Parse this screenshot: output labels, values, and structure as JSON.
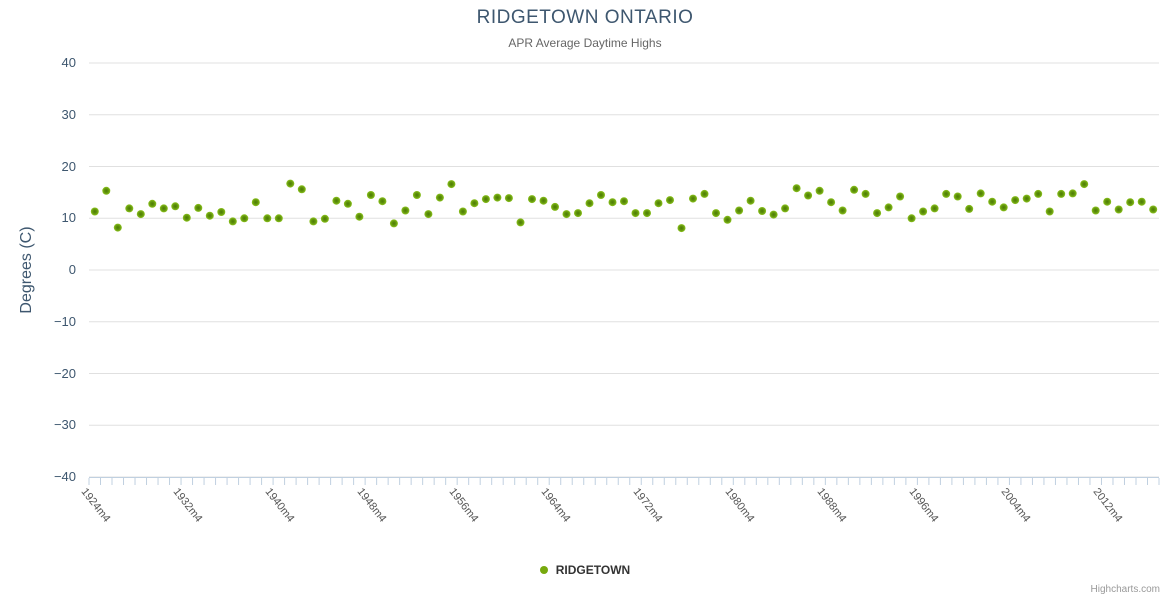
{
  "chart": {
    "title": "RIDGETOWN ONTARIO",
    "subtitle": "APR Average Daytime Highs",
    "y_axis_title": "Degrees (C)",
    "legend_label": "RIDGETOWN",
    "credits": "Highcharts.com"
  },
  "colors": {
    "point_edge": "#8dc41f",
    "point_center": "#4c7a04",
    "legend_dot": "#77a90e",
    "grid_line": "#e0e0e0",
    "axis_line": "#c0d0e0",
    "title_text": "#3E576F",
    "subtitle_text": "#666666",
    "y_label_text": "#3E576F",
    "x_label_text": "#555555",
    "credits_text": "#999999"
  },
  "chart_data": {
    "type": "scatter",
    "title": "RIDGETOWN ONTARIO",
    "subtitle": "APR Average Daytime Highs",
    "xlabel": "",
    "ylabel": "Degrees (C)",
    "ylim": [
      -40,
      40
    ],
    "y_ticks": [
      40,
      30,
      20,
      10,
      0,
      -10,
      -20,
      -30,
      -40
    ],
    "grid": true,
    "legend_position": "bottom-center",
    "x_start_year": 1924,
    "x_suffix": "m4",
    "x_label_interval": 8,
    "x_axis_labels": [
      "1924m4",
      "1932m4",
      "1940m4",
      "1948m4",
      "1956m4",
      "1964m4",
      "1972m4",
      "1980m4",
      "1988m4",
      "1996m4",
      "2004m4",
      "2012m4"
    ],
    "series": [
      {
        "name": "RIDGETOWN",
        "values": [
          11.3,
          15.3,
          8.2,
          11.9,
          10.8,
          12.8,
          11.9,
          12.3,
          10.1,
          12.0,
          10.5,
          11.2,
          9.4,
          10.0,
          13.1,
          10.0,
          10.0,
          16.7,
          15.6,
          9.4,
          9.9,
          13.4,
          12.8,
          10.3,
          14.5,
          13.3,
          9.0,
          11.5,
          14.5,
          10.8,
          14.0,
          16.6,
          11.3,
          12.9,
          13.7,
          14.0,
          13.9,
          9.2,
          13.7,
          13.4,
          12.2,
          10.8,
          11.0,
          12.9,
          14.5,
          13.1,
          13.3,
          11.0,
          11.0,
          12.9,
          13.5,
          8.1,
          13.8,
          14.7,
          11.0,
          9.7,
          11.5,
          13.4,
          11.4,
          10.7,
          11.9,
          15.8,
          14.4,
          15.3,
          13.1,
          11.5,
          15.5,
          14.7,
          11.0,
          12.1,
          14.2,
          10.0,
          11.3,
          11.9,
          14.7,
          14.2,
          11.8,
          14.8,
          13.2,
          12.1,
          13.5,
          13.8,
          14.7,
          11.3,
          14.7,
          14.8,
          16.6,
          11.5,
          13.2,
          11.7,
          13.1,
          13.2,
          11.7
        ]
      }
    ]
  }
}
